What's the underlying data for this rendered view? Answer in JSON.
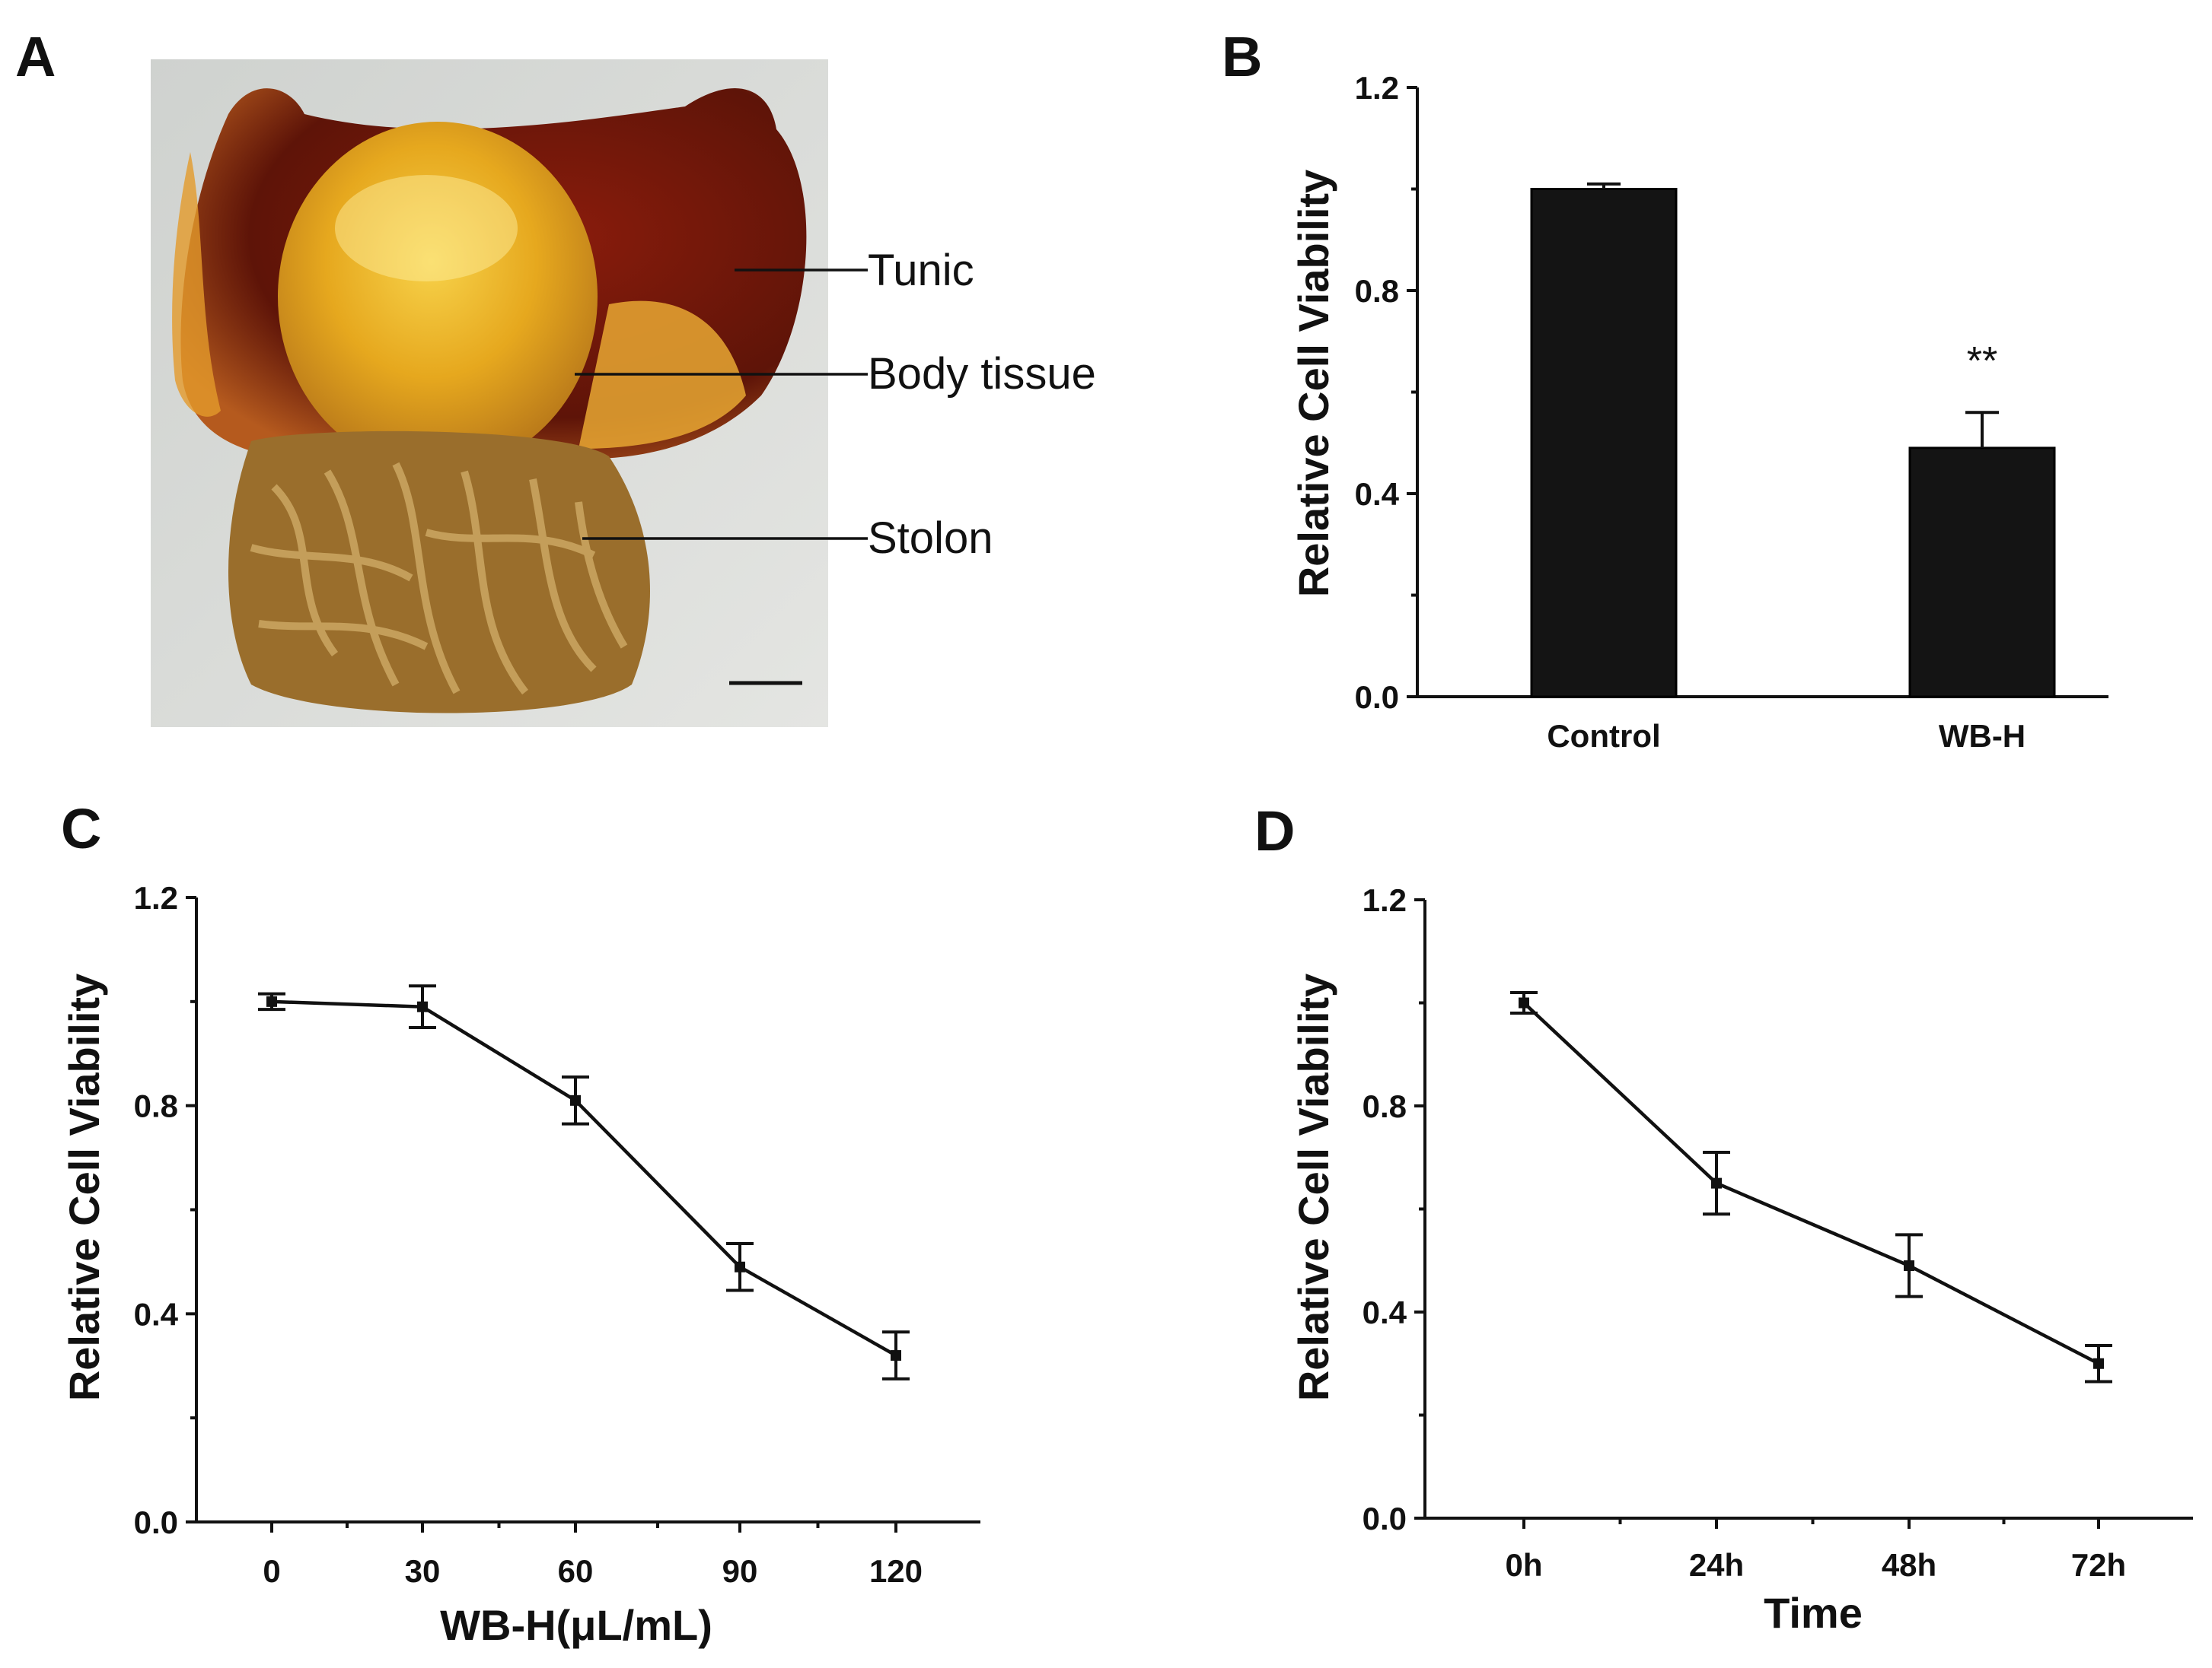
{
  "figure": {
    "panel_a": {
      "letter": "A",
      "photo_caption": "Photograph of specimen",
      "labels": [
        "Tunic",
        "Body tissue",
        "Stolon"
      ]
    }
  },
  "chart_data": [
    {
      "panel": "B",
      "type": "bar",
      "title": "",
      "xlabel": "",
      "ylabel": "Relative Cell Viability",
      "categories": [
        "Control",
        "WB-H"
      ],
      "values": [
        1.0,
        0.49
      ],
      "errors": [
        0.01,
        0.07
      ],
      "annotations": [
        {
          "category": "WB-H",
          "text": "**"
        }
      ],
      "ylim": [
        0,
        1.2
      ],
      "yticks": [
        0.0,
        0.4,
        0.8,
        1.2
      ],
      "ytick_labels": [
        "0.0",
        "0.4",
        "0.8",
        "1.2"
      ]
    },
    {
      "panel": "C",
      "type": "line",
      "title": "",
      "xlabel": "WB-H(μL/mL)",
      "ylabel": "Relative Cell Viability",
      "categories": [
        "0",
        "30",
        "60",
        "90",
        "120"
      ],
      "values": [
        1.0,
        0.99,
        0.81,
        0.49,
        0.32
      ],
      "errors": [
        0.015,
        0.04,
        0.045,
        0.045,
        0.045
      ],
      "ylim": [
        0,
        1.2
      ],
      "yticks": [
        0.0,
        0.4,
        0.8,
        1.2
      ],
      "ytick_labels": [
        "0.0",
        "0.4",
        "0.8",
        "1.2"
      ]
    },
    {
      "panel": "D",
      "type": "line",
      "title": "",
      "xlabel": "Time",
      "ylabel": "Relative Cell Viability",
      "categories": [
        "0h",
        "24h",
        "48h",
        "72h"
      ],
      "values": [
        1.0,
        0.65,
        0.49,
        0.3
      ],
      "errors": [
        0.02,
        0.06,
        0.06,
        0.035
      ],
      "ylim": [
        0,
        1.2
      ],
      "yticks": [
        0.0,
        0.4,
        0.8,
        1.2
      ],
      "ytick_labels": [
        "0.0",
        "0.4",
        "0.8",
        "1.2"
      ]
    }
  ]
}
